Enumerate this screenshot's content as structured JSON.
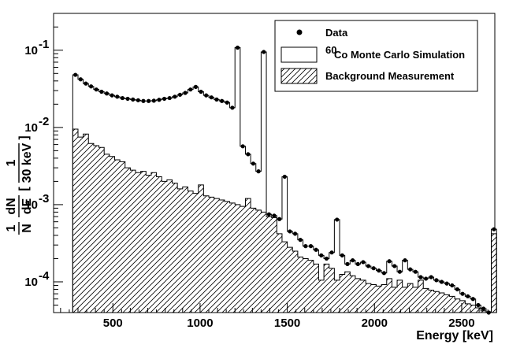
{
  "chart_data": {
    "type": "histogram",
    "xlabel": "Energy [keV]",
    "ylabel_parts": {
      "frac1_num": "1",
      "frac1_den": "N",
      "frac2_num": "dN",
      "frac2_den": "dE",
      "bracket_num": "1",
      "bracket_den": "30 keV"
    },
    "xlim": [
      160,
      2690
    ],
    "ylim": [
      4e-05,
      0.3
    ],
    "y_scale": "log",
    "x_ticks": [
      500,
      1000,
      1500,
      2000,
      2500
    ],
    "x_tick_labels": [
      "500",
      "1000",
      "1500",
      "2000",
      "2500"
    ],
    "y_ticks": [
      {
        "value": 0.0001,
        "mantissa": "10",
        "exponent": "-4"
      },
      {
        "value": 0.001,
        "mantissa": "10",
        "exponent": "-3"
      },
      {
        "value": 0.01,
        "mantissa": "10",
        "exponent": "-2"
      },
      {
        "value": 0.1,
        "mantissa": "10",
        "exponent": "-1"
      }
    ],
    "bin_width_keV": 30,
    "bin_start_keV": 270,
    "legend": {
      "position": "top-right",
      "entries": [
        {
          "label": "Data",
          "marker": "filled-circle"
        },
        {
          "label_sup": "60",
          "label": "Co Monte Carlo Simulation",
          "marker": "open-box"
        },
        {
          "label": "Background Measurement",
          "marker": "hatched-box"
        }
      ]
    },
    "series": [
      {
        "name": "Data",
        "style": "points",
        "values": [
          0.048,
          0.042,
          0.037,
          0.034,
          0.031,
          0.029,
          0.0275,
          0.026,
          0.025,
          0.024,
          0.0235,
          0.023,
          0.0225,
          0.022,
          0.022,
          0.0222,
          0.0228,
          0.0235,
          0.024,
          0.025,
          0.0265,
          0.028,
          0.031,
          0.0335,
          0.029,
          0.026,
          0.0245,
          0.023,
          0.022,
          0.021,
          0.018,
          0.108,
          0.0057,
          0.0045,
          0.0034,
          0.0027,
          0.095,
          0.00075,
          0.00072,
          0.00065,
          0.0023,
          0.00045,
          0.00042,
          0.00035,
          0.00029,
          0.00029,
          0.00026,
          0.00022,
          0.0002,
          0.00024,
          0.00064,
          0.00022,
          0.00017,
          0.00019,
          0.00017,
          0.00018,
          0.00016,
          0.00015,
          0.00014,
          0.00013,
          0.000185,
          0.00016,
          0.000135,
          0.00019,
          0.000145,
          0.000135,
          0.000115,
          0.00011,
          0.000115,
          0.000105,
          0.0001,
          9.5e-05,
          9e-05,
          8e-05,
          7e-05,
          6.5e-05,
          6e-05,
          5e-05,
          4.5e-05,
          4e-05,
          0.00048
        ]
      },
      {
        "name": "60Co Monte Carlo Simulation",
        "style": "step-open",
        "values": [
          0.048,
          0.042,
          0.037,
          0.034,
          0.031,
          0.029,
          0.0275,
          0.026,
          0.025,
          0.024,
          0.0235,
          0.023,
          0.0225,
          0.022,
          0.022,
          0.0222,
          0.0228,
          0.0235,
          0.024,
          0.025,
          0.0265,
          0.028,
          0.031,
          0.0335,
          0.029,
          0.026,
          0.0245,
          0.023,
          0.022,
          0.021,
          0.018,
          0.108,
          0.0057,
          0.0045,
          0.0034,
          0.0027,
          0.095,
          0.00075,
          0.00072,
          0.00065,
          0.0023,
          0.00045,
          0.00042,
          0.00035,
          0.00029,
          0.00029,
          0.00026,
          0.00022,
          0.0002,
          0.00024,
          0.00064,
          0.00022,
          0.00017,
          0.00019,
          0.00017,
          0.00018,
          0.00016,
          0.00015,
          0.00014,
          0.00013,
          0.000185,
          0.00016,
          0.000135,
          0.00019,
          0.000145,
          0.000135,
          0.000115,
          0.00011,
          0.000115,
          0.000105,
          0.0001,
          9.5e-05,
          9e-05,
          8e-05,
          7e-05,
          6.5e-05,
          6e-05,
          5e-05,
          4.5e-05,
          4e-05,
          0.00048
        ]
      },
      {
        "name": "Background Measurement",
        "style": "step-hatched",
        "values": [
          0.0095,
          0.0075,
          0.0082,
          0.0062,
          0.0058,
          0.0055,
          0.0045,
          0.0042,
          0.0038,
          0.0036,
          0.003,
          0.0028,
          0.0026,
          0.0027,
          0.0024,
          0.0026,
          0.0023,
          0.002,
          0.0021,
          0.0019,
          0.0016,
          0.0017,
          0.0015,
          0.0014,
          0.0018,
          0.0013,
          0.00125,
          0.0012,
          0.00115,
          0.0011,
          0.00105,
          0.001,
          0.00095,
          0.0012,
          0.0009,
          0.00085,
          0.0008,
          0.0007,
          0.00068,
          0.00042,
          0.00033,
          0.00028,
          0.00025,
          0.00021,
          0.0002,
          0.00019,
          0.00017,
          0.000105,
          0.00017,
          0.00015,
          0.000105,
          0.000125,
          0.000135,
          0.00012,
          0.00011,
          0.000105,
          9.5e-05,
          9.2e-05,
          8.8e-05,
          9.2e-05,
          0.00011,
          8.5e-05,
          0.000105,
          8.5e-05,
          9.5e-05,
          8.5e-05,
          0.000105,
          8.2e-05,
          7.8e-05,
          7.5e-05,
          7.2e-05,
          6.8e-05,
          6.5e-05,
          6e-05,
          5.7e-05,
          5.2e-05,
          5e-05,
          4.6e-05,
          4.2e-05,
          4.1e-05,
          0.00042
        ]
      }
    ]
  }
}
